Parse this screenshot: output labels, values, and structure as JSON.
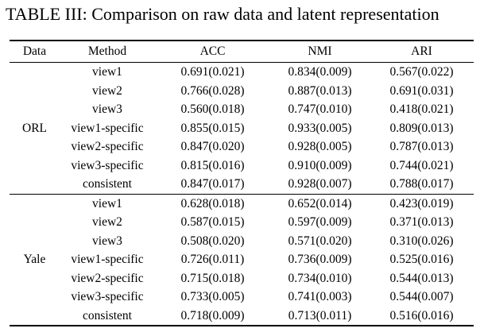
{
  "title": "TABLE III: Comparison on raw data and latent representation",
  "table": {
    "columns": [
      "Data",
      "Method",
      "ACC",
      "NMI",
      "ARI"
    ],
    "groups": [
      {
        "data": "ORL",
        "rows": [
          {
            "method": "view1",
            "acc": "0.691(0.021)",
            "nmi": "0.834(0.009)",
            "ari": "0.567(0.022)"
          },
          {
            "method": "view2",
            "acc": "0.766(0.028)",
            "nmi": "0.887(0.013)",
            "ari": "0.691(0.031)"
          },
          {
            "method": "view3",
            "acc": "0.560(0.018)",
            "nmi": "0.747(0.010)",
            "ari": "0.418(0.021)"
          },
          {
            "method": "view1-specific",
            "acc": "0.855(0.015)",
            "nmi": "0.933(0.005)",
            "ari": "0.809(0.013)"
          },
          {
            "method": "view2-specific",
            "acc": "0.847(0.020)",
            "nmi": "0.928(0.005)",
            "ari": "0.787(0.013)"
          },
          {
            "method": "view3-specific",
            "acc": "0.815(0.016)",
            "nmi": "0.910(0.009)",
            "ari": "0.744(0.021)"
          },
          {
            "method": "consistent",
            "acc": "0.847(0.017)",
            "nmi": "0.928(0.007)",
            "ari": "0.788(0.017)"
          }
        ]
      },
      {
        "data": "Yale",
        "rows": [
          {
            "method": "view1",
            "acc": "0.628(0.018)",
            "nmi": "0.652(0.014)",
            "ari": "0.423(0.019)"
          },
          {
            "method": "view2",
            "acc": "0.587(0.015)",
            "nmi": "0.597(0.009)",
            "ari": "0.371(0.013)"
          },
          {
            "method": "view3",
            "acc": "0.508(0.020)",
            "nmi": "0.571(0.020)",
            "ari": "0.310(0.026)"
          },
          {
            "method": "view1-specific",
            "acc": "0.726(0.011)",
            "nmi": "0.736(0.009)",
            "ari": "0.525(0.016)"
          },
          {
            "method": "view2-specific",
            "acc": "0.715(0.018)",
            "nmi": "0.734(0.010)",
            "ari": "0.544(0.013)"
          },
          {
            "method": "view3-specific",
            "acc": "0.733(0.005)",
            "nmi": "0.741(0.003)",
            "ari": "0.544(0.007)"
          },
          {
            "method": "consistent",
            "acc": "0.718(0.009)",
            "nmi": "0.713(0.011)",
            "ari": "0.516(0.016)"
          }
        ]
      }
    ]
  }
}
